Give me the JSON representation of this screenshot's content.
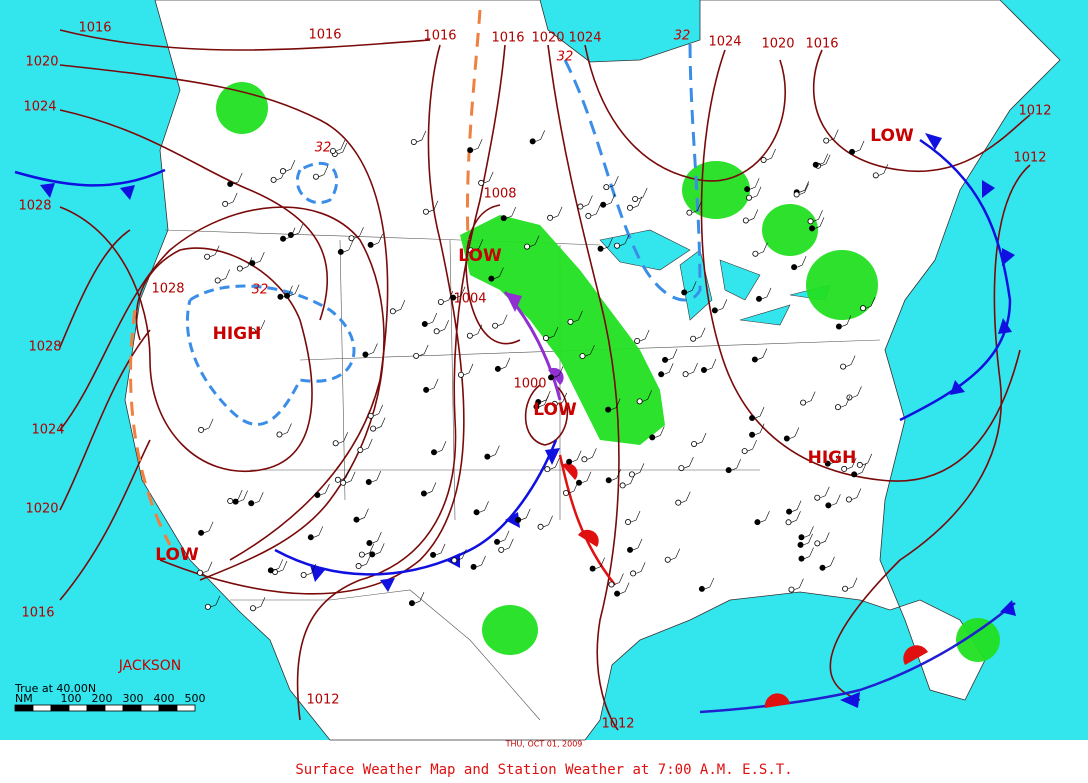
{
  "map": {
    "caption": "Surface Weather Map and Station Weather at 7:00 A.M. E.S.T.",
    "date": "THU, OCT 01, 2009",
    "isobar_labels": [
      "1016",
      "1016",
      "1016",
      "1016",
      "1020",
      "1024",
      "1024",
      "1020",
      "1016",
      "1012",
      "1012",
      "1020",
      "1024",
      "1028",
      "1028",
      "1028",
      "1024",
      "1020",
      "1016",
      "1008",
      "1004",
      "1000",
      "1012",
      "1012"
    ],
    "temperature_labels": [
      "32",
      "32",
      "32",
      "32"
    ],
    "pressure_centers": [
      "HIGH",
      "HIGH",
      "LOW",
      "LOW",
      "LOW",
      "LOW"
    ],
    "places": [
      "JACKSON"
    ],
    "scale": {
      "title": "True at 40.00N",
      "unit": "NM",
      "ticks": [
        "100",
        "200",
        "300",
        "400",
        "500"
      ]
    }
  }
}
